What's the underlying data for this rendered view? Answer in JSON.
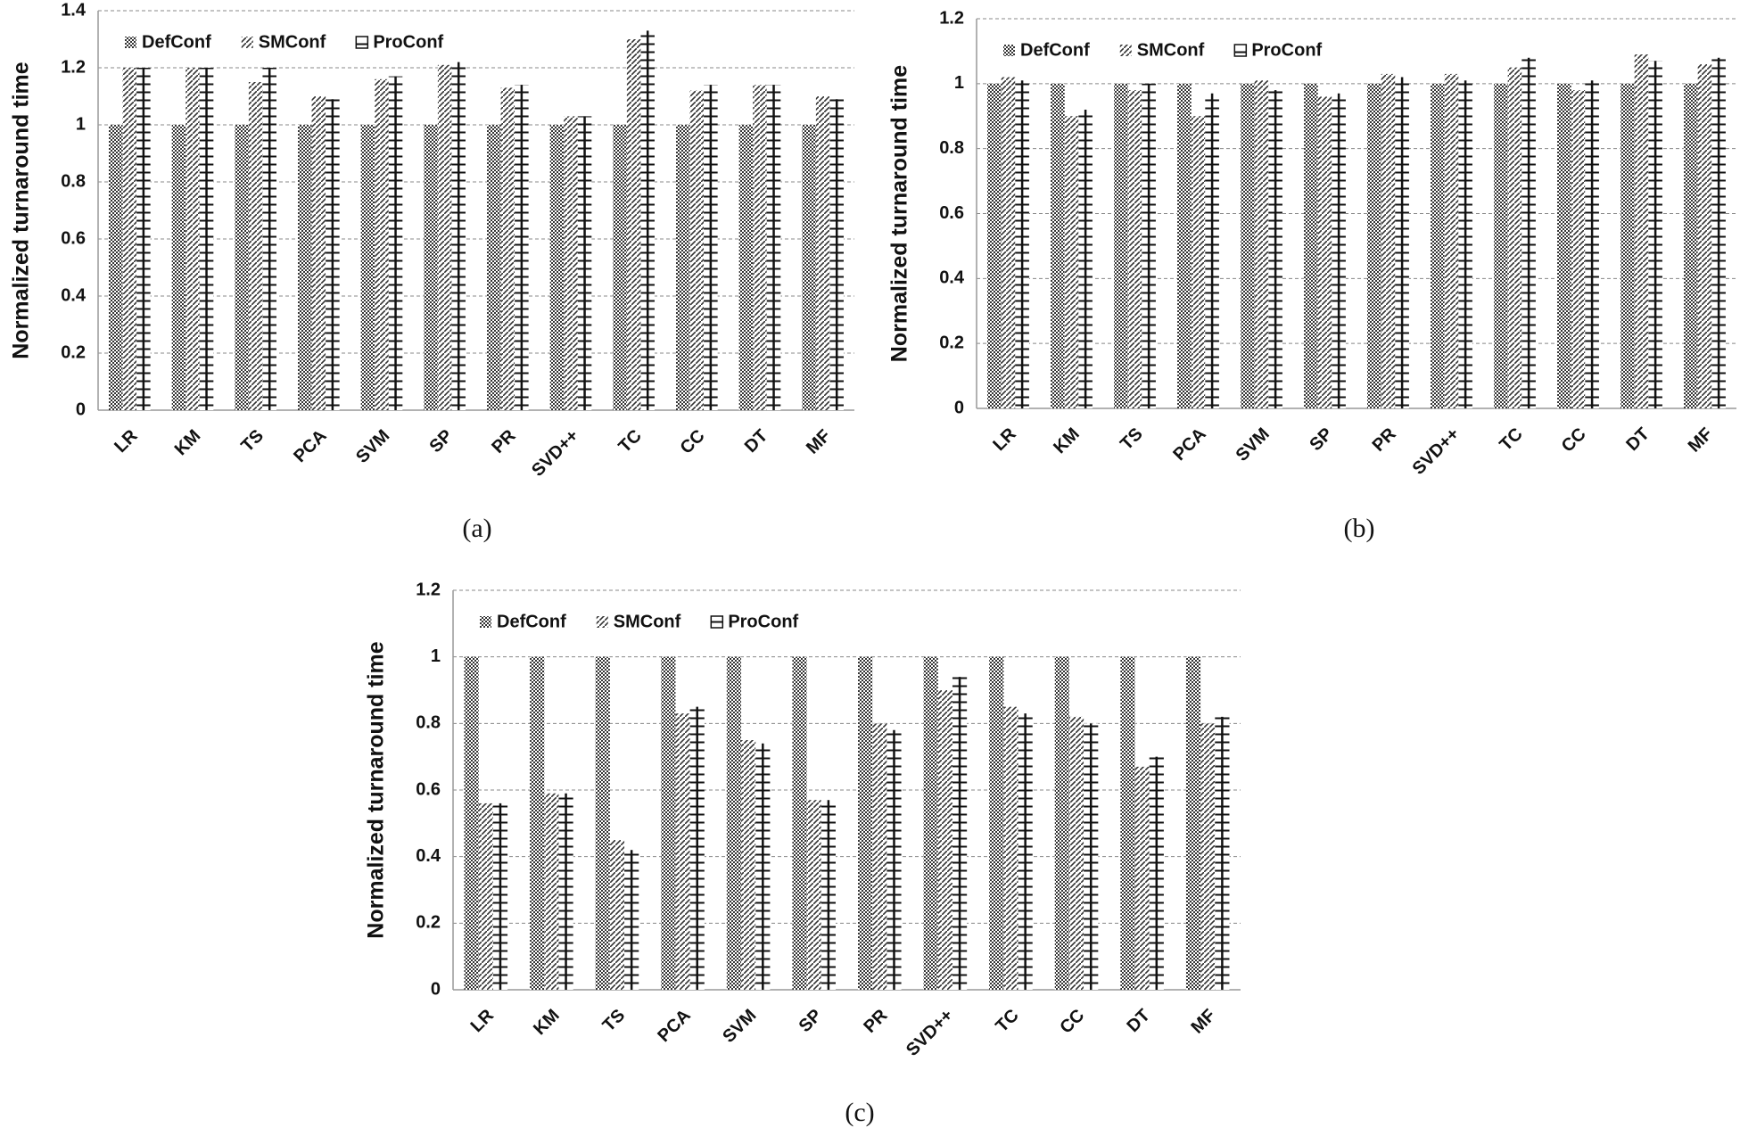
{
  "chart_data": [
    {
      "type": "bar",
      "caption": "(a)",
      "ylabel": "Normalized turnaround time",
      "categories": [
        "LR",
        "KM",
        "TS",
        "PCA",
        "SVM",
        "SP",
        "PR",
        "SVD++",
        "TC",
        "CC",
        "DT",
        "MF"
      ],
      "series": [
        {
          "name": "DefConf",
          "color": "#333333",
          "values": [
            1,
            1,
            1,
            1,
            1,
            1,
            1,
            1,
            1,
            1,
            1,
            1
          ]
        },
        {
          "name": "SMConf",
          "color": "#333333",
          "values": [
            1.2,
            1.2,
            1.15,
            1.1,
            1.16,
            1.21,
            1.13,
            1.03,
            1.3,
            1.12,
            1.14,
            1.1
          ]
        },
        {
          "name": "ProConf",
          "color": "#111111",
          "values": [
            1.2,
            1.2,
            1.2,
            1.09,
            1.17,
            1.22,
            1.14,
            1.03,
            1.33,
            1.14,
            1.14,
            1.09
          ]
        }
      ],
      "ylim": [
        0,
        1.4
      ],
      "yticks": [
        0,
        0.2,
        0.4,
        0.6,
        0.8,
        1,
        1.2,
        1.4
      ],
      "grid": true,
      "legend": "top-left"
    },
    {
      "type": "bar",
      "caption": "(b)",
      "ylabel": "Normalized turnaround time",
      "categories": [
        "LR",
        "KM",
        "TS",
        "PCA",
        "SVM",
        "SP",
        "PR",
        "SVD++",
        "TC",
        "CC",
        "DT",
        "MF"
      ],
      "series": [
        {
          "name": "DefConf",
          "color": "#333333",
          "values": [
            1,
            1,
            1,
            1,
            1,
            1,
            1,
            1,
            1,
            1,
            1,
            1
          ]
        },
        {
          "name": "SMConf",
          "color": "#333333",
          "values": [
            1.02,
            0.9,
            0.98,
            0.9,
            1.01,
            0.96,
            1.03,
            1.03,
            1.05,
            0.98,
            1.09,
            1.06
          ]
        },
        {
          "name": "ProConf",
          "color": "#111111",
          "values": [
            1.01,
            0.92,
            1.0,
            0.97,
            0.98,
            0.97,
            1.02,
            1.01,
            1.08,
            1.01,
            1.07,
            1.08
          ]
        }
      ],
      "ylim": [
        0,
        1.2
      ],
      "yticks": [
        0,
        0.2,
        0.4,
        0.6,
        0.8,
        1,
        1.2
      ],
      "grid": true,
      "legend": "top-left"
    },
    {
      "type": "bar",
      "caption": "(c)",
      "ylabel": "Normalized turnaround time",
      "categories": [
        "LR",
        "KM",
        "TS",
        "PCA",
        "SVM",
        "SP",
        "PR",
        "SVD++",
        "TC",
        "CC",
        "DT",
        "MF"
      ],
      "series": [
        {
          "name": "DefConf",
          "color": "#333333",
          "values": [
            1,
            1,
            1,
            1,
            1,
            1,
            1,
            1,
            1,
            1,
            1,
            1
          ]
        },
        {
          "name": "SMConf",
          "color": "#333333",
          "values": [
            0.56,
            0.59,
            0.45,
            0.83,
            0.75,
            0.57,
            0.8,
            0.9,
            0.85,
            0.82,
            0.67,
            0.8
          ]
        },
        {
          "name": "ProConf",
          "color": "#111111",
          "values": [
            0.56,
            0.59,
            0.42,
            0.85,
            0.74,
            0.57,
            0.78,
            0.94,
            0.83,
            0.8,
            0.7,
            0.82
          ]
        }
      ],
      "ylim": [
        0,
        1.2
      ],
      "yticks": [
        0,
        0.2,
        0.4,
        0.6,
        0.8,
        1,
        1.2
      ],
      "grid": true,
      "legend": "top-left"
    }
  ]
}
